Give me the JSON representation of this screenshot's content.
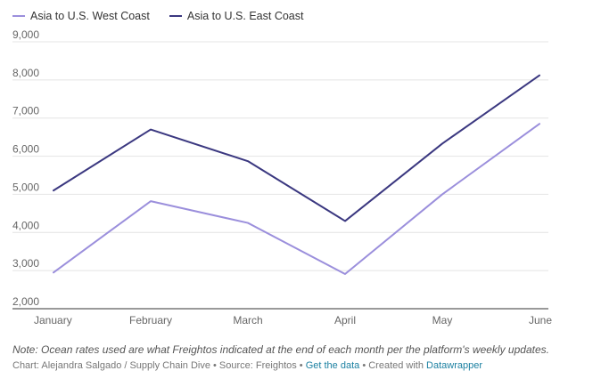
{
  "chart_data": {
    "type": "line",
    "categories": [
      "January",
      "February",
      "March",
      "April",
      "May",
      "June"
    ],
    "series": [
      {
        "name": "Asia to U.S. West Coast",
        "color": "#9b8fdc",
        "values": [
          2950,
          4820,
          4250,
          2910,
          5000,
          6850
        ]
      },
      {
        "name": "Asia to U.S. East Coast",
        "color": "#3b3880",
        "values": [
          5100,
          6700,
          5870,
          4300,
          6330,
          8120
        ]
      }
    ],
    "ylim": [
      2000,
      9000
    ],
    "y_ticks": [
      "2,000",
      "3,000",
      "4,000",
      "5,000",
      "6,000",
      "7,000",
      "8,000",
      "9,000"
    ],
    "grid": true,
    "legend": "top-left"
  },
  "footer": {
    "note": "Note: Ocean rates used are what Freightos indicated at the end of each month per the platform's weekly updates.",
    "credit_prefix": "Chart: Alejandra Salgado / Supply Chain Dive • Source: Freightos • ",
    "get_data": "Get the data",
    "created_with": " • Created with ",
    "datawrapper": "Datawrapper"
  }
}
